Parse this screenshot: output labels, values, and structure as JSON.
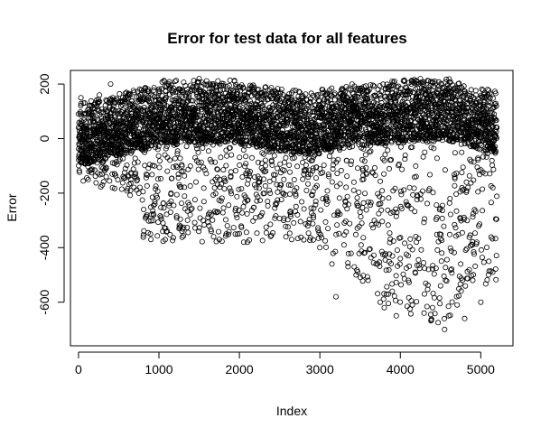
{
  "chart_data": {
    "type": "scatter",
    "title": "Error for test data for all features",
    "xlabel": "Index",
    "ylabel": "Error",
    "xlim": [
      -100,
      5400
    ],
    "ylim": [
      -760,
      250
    ],
    "x_ticks": [
      0,
      1000,
      2000,
      3000,
      4000,
      5000
    ],
    "y_ticks": [
      -600,
      -400,
      -200,
      0,
      200
    ],
    "x_tick_labels": [
      "0",
      "1000",
      "2000",
      "3000",
      "4000",
      "5000"
    ],
    "y_tick_labels": [
      "-600",
      "-400",
      "-200",
      "0",
      "200"
    ],
    "marker": "open-circle",
    "marker_color": "#000000",
    "n_points": 5200,
    "grid": false,
    "legend": "none",
    "sampled_points": [
      [
        0,
        90
      ],
      [
        30,
        150
      ],
      [
        60,
        40
      ],
      [
        100,
        -75
      ],
      [
        150,
        120
      ],
      [
        200,
        60
      ],
      [
        260,
        160
      ],
      [
        300,
        -20
      ],
      [
        350,
        100
      ],
      [
        400,
        200
      ],
      [
        450,
        30
      ],
      [
        500,
        -60
      ],
      [
        550,
        150
      ],
      [
        600,
        90
      ],
      [
        650,
        -150
      ],
      [
        700,
        120
      ],
      [
        750,
        -200
      ],
      [
        800,
        60
      ],
      [
        850,
        -280
      ],
      [
        900,
        -370
      ],
      [
        950,
        -240
      ],
      [
        1000,
        130
      ],
      [
        1050,
        -310
      ],
      [
        1100,
        40
      ],
      [
        1150,
        -200
      ],
      [
        1200,
        210
      ],
      [
        1250,
        -330
      ],
      [
        1300,
        -120
      ],
      [
        1350,
        180
      ],
      [
        1400,
        -260
      ],
      [
        1450,
        -70
      ],
      [
        1500,
        220
      ],
      [
        1550,
        -300
      ],
      [
        1600,
        100
      ],
      [
        1650,
        -340
      ],
      [
        1700,
        -150
      ],
      [
        1750,
        -370
      ],
      [
        1800,
        180
      ],
      [
        1850,
        -320
      ],
      [
        1900,
        -60
      ],
      [
        1950,
        -350
      ],
      [
        2000,
        190
      ],
      [
        2050,
        -250
      ],
      [
        2100,
        -380
      ],
      [
        2150,
        60
      ],
      [
        2200,
        -290
      ],
      [
        2250,
        -160
      ],
      [
        2300,
        160
      ],
      [
        2350,
        -230
      ],
      [
        2400,
        -80
      ],
      [
        2450,
        170
      ],
      [
        2500,
        -180
      ],
      [
        2550,
        -300
      ],
      [
        2600,
        100
      ],
      [
        2650,
        -370
      ],
      [
        2700,
        -210
      ],
      [
        2750,
        170
      ],
      [
        2800,
        -130
      ],
      [
        2850,
        -320
      ],
      [
        2900,
        60
      ],
      [
        2950,
        -230
      ],
      [
        3000,
        -400
      ],
      [
        3050,
        170
      ],
      [
        3100,
        -330
      ],
      [
        3150,
        -460
      ],
      [
        3200,
        -580
      ],
      [
        3250,
        80
      ],
      [
        3300,
        -390
      ],
      [
        3350,
        -470
      ],
      [
        3400,
        200
      ],
      [
        3450,
        -500
      ],
      [
        3500,
        -270
      ],
      [
        3550,
        -420
      ],
      [
        3600,
        -520
      ],
      [
        3650,
        120
      ],
      [
        3700,
        -460
      ],
      [
        3750,
        -600
      ],
      [
        3800,
        -620
      ],
      [
        3850,
        180
      ],
      [
        3900,
        -560
      ],
      [
        3950,
        -650
      ],
      [
        4000,
        -440
      ],
      [
        4050,
        210
      ],
      [
        4100,
        -520
      ],
      [
        4150,
        -610
      ],
      [
        4200,
        -380
      ],
      [
        4250,
        220
      ],
      [
        4300,
        -570
      ],
      [
        4350,
        -480
      ],
      [
        4400,
        -620
      ],
      [
        4450,
        170
      ],
      [
        4500,
        -540
      ],
      [
        4550,
        -700
      ],
      [
        4600,
        -650
      ],
      [
        4650,
        150
      ],
      [
        4700,
        -580
      ],
      [
        4750,
        -460
      ],
      [
        4800,
        -660
      ],
      [
        4850,
        100
      ],
      [
        4900,
        -520
      ],
      [
        4950,
        -380
      ],
      [
        5000,
        -600
      ],
      [
        5050,
        150
      ],
      [
        5100,
        -450
      ],
      [
        5150,
        -180
      ],
      [
        5200,
        40
      ]
    ]
  }
}
